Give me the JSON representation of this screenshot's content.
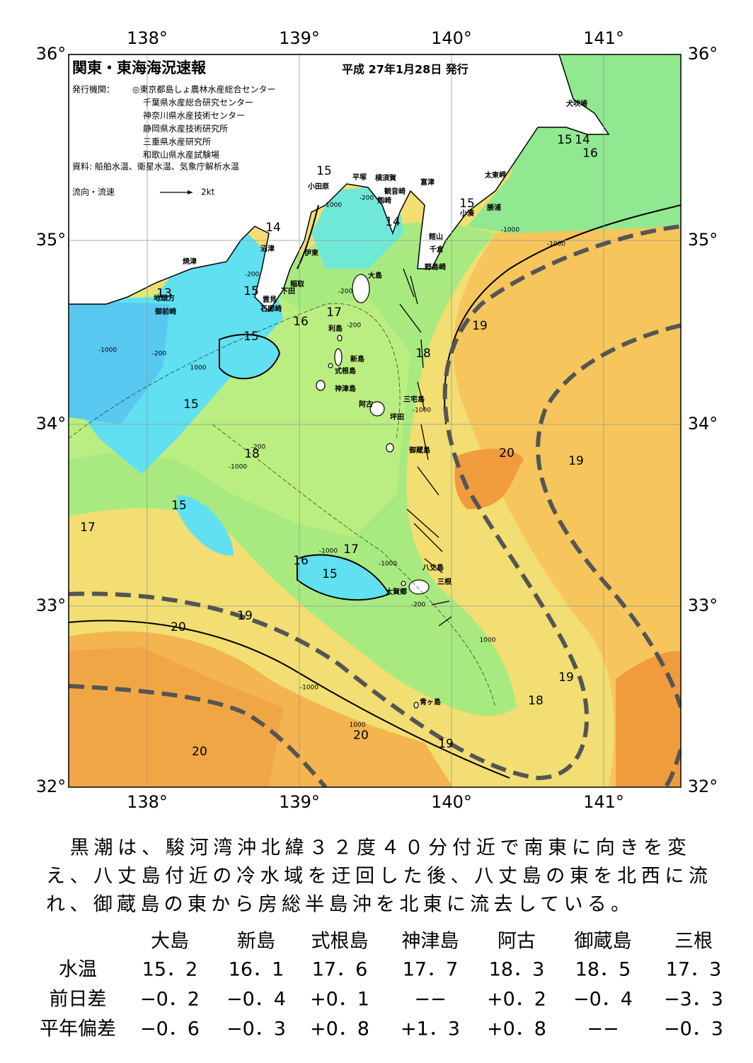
{
  "header": {
    "title": "関東・東海海況速報",
    "date": "平成 27年1月28日 発行",
    "issuer_label": "発行機関：",
    "issuers": [
      "◎東京都島しょ農林水産総合センター",
      "千葉県水産総合研究センター",
      "神奈川県水産技術センター",
      "静岡県水産技術研究所",
      "三重県水産研究所",
      "和歌山県水産試験場"
    ],
    "source": "資料: 船舶水温、衛星水温、気象庁解析水温",
    "legend_label": "流向・流速",
    "legend_speed": "2kt"
  },
  "map": {
    "lon_labels": [
      "138°",
      "139°",
      "140°",
      "141°"
    ],
    "lat_labels": [
      "36°",
      "35°",
      "34°",
      "33°",
      "32°"
    ],
    "places": [
      "犬吠埼",
      "太東岬",
      "勝浦",
      "小湊",
      "富津",
      "横須賀",
      "観音崎",
      "剱崎",
      "平塚",
      "小田原",
      "館山",
      "千倉",
      "野島崎",
      "沼津",
      "伊東",
      "稲取",
      "下田",
      "雲見",
      "石廊崎",
      "焼津",
      "地頭方",
      "御前崎",
      "大島",
      "利島",
      "新島",
      "式根島",
      "神津島",
      "三宅島",
      "阿古",
      "坪田",
      "御蔵島",
      "八丈島",
      "三根",
      "大賀郷",
      "青ヶ島"
    ],
    "temperature_labels": [
      "15",
      "15",
      "14",
      "15",
      "13",
      "16",
      "17",
      "15",
      "15",
      "18",
      "18",
      "19",
      "20",
      "19",
      "15",
      "17",
      "17",
      "16",
      "15",
      "19",
      "20",
      "19",
      "18",
      "20",
      "19",
      "20",
      "15",
      "14",
      "16",
      "14"
    ],
    "depth_labels": [
      "-1000",
      "-200",
      "-200",
      "-200",
      "-200",
      "-1000",
      "-200",
      "1000",
      "-200",
      "-1000",
      "-1000",
      "-1000",
      "-200",
      "-1000",
      "-1000",
      "1000",
      "-1000",
      "1000",
      "-1000"
    ]
  },
  "text": {
    "paragraph": [
      "　黒潮は、駿河湾沖北緯３２度４０分付近で南東に向きを変",
      "え、八丈島付近の冷水域を迂回した後、八丈島の東を北西に流",
      "れ、御蔵島の東から房総半島沖を北東に流去している。"
    ]
  },
  "table": {
    "columns": [
      "大島",
      "新島",
      "式根島",
      "神津島",
      "阿古",
      "御蔵島",
      "三根"
    ],
    "rows": [
      {
        "label": "水温",
        "cells": [
          "15．2",
          "16．1",
          "17．6",
          "17．7",
          "18．3",
          "18．5",
          "17．3"
        ]
      },
      {
        "label": "前日差",
        "cells": [
          "−0．2",
          "−0．4",
          "+0．1",
          "−−",
          "+0．2",
          "−0．4",
          "−3．3"
        ]
      },
      {
        "label": "平年偏差",
        "cells": [
          "−0．6",
          "−0．3",
          "+0．8",
          "+1．3",
          "+0．8",
          "−−",
          "−0．3"
        ]
      }
    ]
  }
}
